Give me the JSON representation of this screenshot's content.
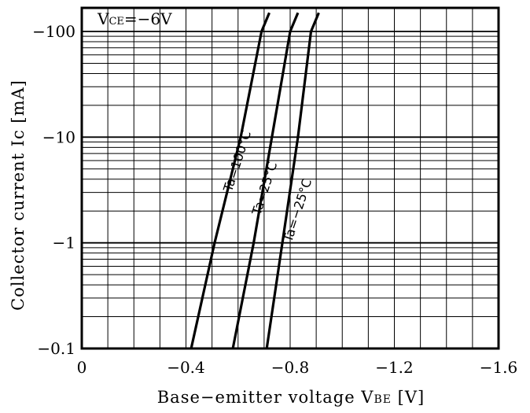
{
  "chart_data": {
    "type": "line",
    "condition": {
      "main": "V",
      "sub": "CE",
      "value": "=−6V"
    },
    "xlabel": "Base−emitter voltage V",
    "xlabel_sub": "BE",
    "xlabel_unit": " [V]",
    "ylabel": "Collector  current  Ic  [mA]",
    "x_range": [
      0,
      -1.6
    ],
    "y_range": [
      -0.1,
      -150
    ],
    "y_scale": "log",
    "grid": true,
    "x_ticks": [
      {
        "value": 0,
        "label": "0"
      },
      {
        "value": -0.4,
        "label": "−0.4"
      },
      {
        "value": -0.8,
        "label": "−0.8"
      },
      {
        "value": -1.2,
        "label": "−1.2"
      },
      {
        "value": -1.6,
        "label": "−1.6"
      }
    ],
    "y_ticks": [
      {
        "value": -0.1,
        "label": "−0.1"
      },
      {
        "value": -1,
        "label": "−1"
      },
      {
        "value": -10,
        "label": "−10"
      },
      {
        "value": -100,
        "label": "−100"
      }
    ],
    "series": [
      {
        "name": "Ta=100°C",
        "x": [
          -0.42,
          -0.51,
          -0.61,
          -0.69,
          -0.72
        ],
        "y": [
          -0.1,
          -1,
          -10,
          -100,
          -150
        ]
      },
      {
        "name": "Ta=25°C",
        "x": [
          -0.58,
          -0.66,
          -0.73,
          -0.8,
          -0.83
        ],
        "y": [
          -0.1,
          -1,
          -10,
          -100,
          -150
        ]
      },
      {
        "name": "Ta=−25°C",
        "x": [
          -0.71,
          -0.77,
          -0.83,
          -0.88,
          -0.91
        ],
        "y": [
          -0.1,
          -1,
          -10,
          -100,
          -150
        ]
      }
    ]
  }
}
